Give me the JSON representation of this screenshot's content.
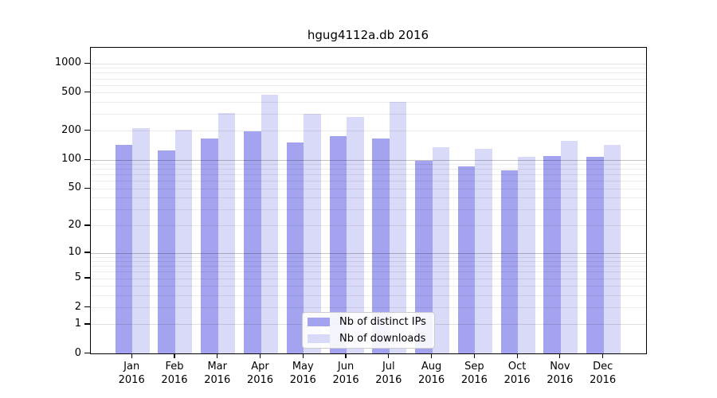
{
  "title": "hgug4112a.db 2016",
  "colors": {
    "distinct_ips": "#a3a3ef",
    "downloads": "#d9d9f8",
    "axis": "#000000",
    "grid_minor": "rgba(0,0,0,0.075)",
    "grid_major": "rgba(0,0,0,0.24)",
    "grid_soft": "rgba(0,0,0,0.12)"
  },
  "y_axis": {
    "ticks": [
      {
        "label": "0",
        "value": 0
      },
      {
        "label": "1",
        "value": 1
      },
      {
        "label": "2",
        "value": 2
      },
      {
        "label": "5",
        "value": 5
      },
      {
        "label": "10",
        "value": 10
      },
      {
        "label": "20",
        "value": 20
      },
      {
        "label": "50",
        "value": 50
      },
      {
        "label": "100",
        "value": 100
      },
      {
        "label": "200",
        "value": 200
      },
      {
        "label": "500",
        "value": 500
      },
      {
        "label": "1000",
        "value": 1000
      }
    ]
  },
  "x_axis": {
    "labels": [
      {
        "month": "Jan",
        "year": "2016"
      },
      {
        "month": "Feb",
        "year": "2016"
      },
      {
        "month": "Mar",
        "year": "2016"
      },
      {
        "month": "Apr",
        "year": "2016"
      },
      {
        "month": "May",
        "year": "2016"
      },
      {
        "month": "Jun",
        "year": "2016"
      },
      {
        "month": "Jul",
        "year": "2016"
      },
      {
        "month": "Aug",
        "year": "2016"
      },
      {
        "month": "Sep",
        "year": "2016"
      },
      {
        "month": "Oct",
        "year": "2016"
      },
      {
        "month": "Nov",
        "year": "2016"
      },
      {
        "month": "Dec",
        "year": "2016"
      }
    ]
  },
  "legend": {
    "items": [
      {
        "label": "Nb of distinct IPs",
        "series": "distinct_ips",
        "color": "#a3a3ef"
      },
      {
        "label": "Nb of downloads",
        "series": "downloads",
        "color": "#d9d9f8"
      }
    ]
  },
  "chart_data": {
    "type": "bar",
    "title": "hgug4112a.db 2016",
    "categories": [
      "Jan 2016",
      "Feb 2016",
      "Mar 2016",
      "Apr 2016",
      "May 2016",
      "Jun 2016",
      "Jul 2016",
      "Aug 2016",
      "Sep 2016",
      "Oct 2016",
      "Nov 2016",
      "Dec 2016"
    ],
    "series": [
      {
        "name": "Nb of distinct IPs",
        "color": "#a3a3ef",
        "values": [
          143,
          124,
          166,
          197,
          150,
          176,
          168,
          97,
          86,
          77,
          109,
          107
        ]
      },
      {
        "name": "Nb of downloads",
        "color": "#d9d9f8",
        "values": [
          214,
          204,
          306,
          475,
          299,
          280,
          398,
          135,
          130,
          107,
          156,
          143
        ]
      }
    ],
    "yscale": "log1p",
    "ytick_values": [
      0,
      1,
      2,
      5,
      10,
      20,
      50,
      100,
      200,
      500,
      1000
    ],
    "ylim": [
      0,
      1470
    ],
    "grid": true,
    "legend_position": "lower center"
  }
}
